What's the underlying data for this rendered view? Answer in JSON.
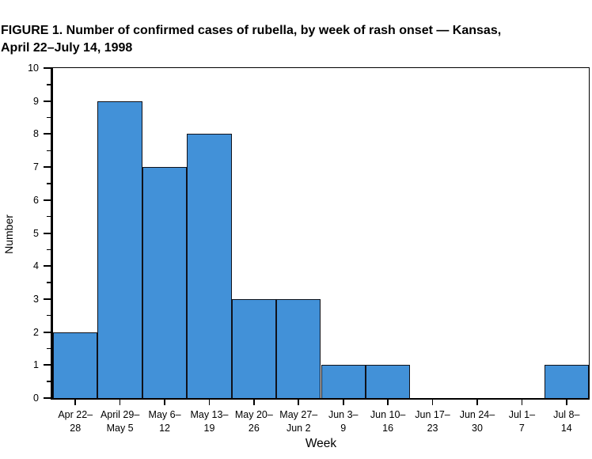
{
  "header": {
    "title_line1": "FIGURE 1. Number of confirmed cases of rubella, by week of rash onset — Kansas,",
    "title_line2": "April 22–July 14, 1998"
  },
  "chart_data": {
    "type": "bar",
    "title": "FIGURE 1. Number of confirmed cases of rubella, by week of rash onset — Kansas, April 22–July 14, 1998",
    "xlabel": "Week",
    "ylabel": "Number",
    "ylim": [
      0,
      10
    ],
    "y_major_ticks": [
      0,
      1,
      2,
      3,
      4,
      5,
      6,
      7,
      8,
      9,
      10
    ],
    "y_minor_tick_interval": 0.5,
    "grid": false,
    "legend": false,
    "bar_style": "histogram-adjacent",
    "bar_color": "#4291D8",
    "bar_border_color": "#10121a",
    "categories": [
      "Apr 22–\n28",
      "April 29–\nMay 5",
      "May 6–\n12",
      "May 13–\n19",
      "May 20–\n26",
      "May 27–\nJun 2",
      "Jun 3–\n9",
      "Jun 10–\n16",
      "Jun 17–\n23",
      "Jun 24–\n30",
      "Jul 1–\n7",
      "Jul 8–\n14"
    ],
    "values": [
      2,
      9,
      7,
      8,
      3,
      3,
      1,
      1,
      0,
      0,
      0,
      1
    ]
  }
}
